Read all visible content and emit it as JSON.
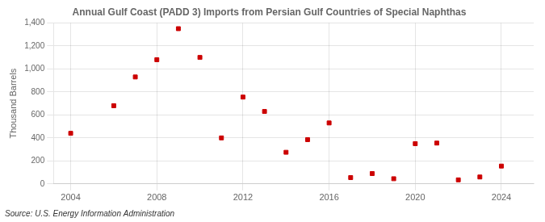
{
  "chart_data": {
    "type": "scatter",
    "title": "Annual Gulf Coast (PADD 3) Imports from Persian Gulf Countries of Special Naphthas",
    "ylabel": "Thousand Barrels",
    "source": "Source: U.S. Energy Information Administration",
    "x": [
      2004,
      2006,
      2007,
      2008,
      2009,
      2010,
      2011,
      2012,
      2013,
      2014,
      2015,
      2016,
      2017,
      2018,
      2019,
      2020,
      2021,
      2022,
      2023,
      2024
    ],
    "values": [
      440,
      680,
      930,
      1080,
      1350,
      1100,
      400,
      755,
      630,
      275,
      385,
      530,
      55,
      90,
      45,
      350,
      355,
      35,
      60,
      155
    ],
    "color": "#cc0000",
    "marker": "square",
    "xlim": [
      2003.2,
      2025.5
    ],
    "xticks": [
      2004,
      2008,
      2012,
      2016,
      2020,
      2024
    ],
    "ylim": [
      0,
      1400
    ],
    "yticks": [
      0,
      200,
      400,
      600,
      800,
      {
        "value": 1000,
        "label": "1,000"
      },
      {
        "value": 1200,
        "label": "1,200"
      },
      {
        "value": 1400,
        "label": "1,400"
      }
    ],
    "grid": true
  }
}
